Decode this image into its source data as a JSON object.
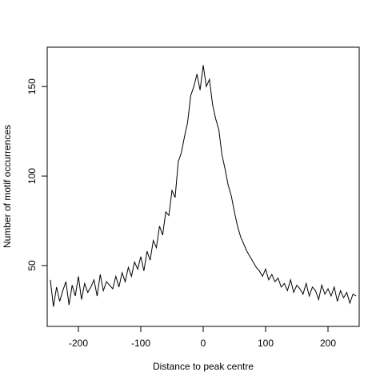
{
  "chart_data": {
    "type": "line",
    "title": "",
    "xlabel": "Distance to peak centre",
    "ylabel": "Number of motif occurrences",
    "xlim": [
      -250,
      250
    ],
    "ylim": [
      16,
      172
    ],
    "xticks": [
      -200,
      -100,
      0,
      100,
      200
    ],
    "yticks": [
      50,
      100,
      150
    ],
    "xtick_labels": [
      "-200",
      "-100",
      "0",
      "100",
      "200"
    ],
    "ytick_labels": [
      "50",
      "100",
      "150"
    ],
    "grid": false,
    "legend": "none",
    "line_color": "#000000",
    "series": [
      {
        "x": [
          -245,
          -240,
          -235,
          -230,
          -225,
          -220,
          -215,
          -210,
          -205,
          -200,
          -195,
          -190,
          -185,
          -180,
          -175,
          -170,
          -165,
          -160,
          -155,
          -150,
          -145,
          -140,
          -135,
          -130,
          -125,
          -120,
          -115,
          -110,
          -105,
          -100,
          -95,
          -90,
          -85,
          -80,
          -75,
          -70,
          -65,
          -60,
          -55,
          -50,
          -45,
          -40,
          -35,
          -30,
          -25,
          -20,
          -15,
          -10,
          -5,
          0,
          5,
          10,
          15,
          20,
          25,
          30,
          35,
          40,
          45,
          50,
          55,
          60,
          65,
          70,
          75,
          80,
          85,
          90,
          95,
          100,
          105,
          110,
          115,
          120,
          125,
          130,
          135,
          140,
          145,
          150,
          155,
          160,
          165,
          170,
          175,
          180,
          185,
          190,
          195,
          200,
          205,
          210,
          215,
          220,
          225,
          230,
          235,
          240,
          245
        ],
        "values": [
          42,
          27,
          38,
          30,
          36,
          41,
          28,
          39,
          33,
          44,
          31,
          40,
          35,
          38,
          42,
          33,
          45,
          36,
          41,
          39,
          37,
          44,
          38,
          46,
          41,
          49,
          44,
          52,
          48,
          55,
          47,
          58,
          53,
          64,
          60,
          72,
          67,
          80,
          78,
          92,
          88,
          108,
          113,
          122,
          130,
          145,
          150,
          157,
          148,
          162,
          150,
          154,
          140,
          132,
          126,
          112,
          104,
          95,
          89,
          80,
          72,
          66,
          62,
          58,
          55,
          52,
          49,
          47,
          44,
          48,
          42,
          45,
          41,
          43,
          38,
          40,
          36,
          42,
          35,
          39,
          37,
          34,
          40,
          33,
          38,
          36,
          31,
          39,
          34,
          37,
          33,
          38,
          30,
          36,
          32,
          35,
          29,
          34,
          33
        ]
      }
    ]
  }
}
